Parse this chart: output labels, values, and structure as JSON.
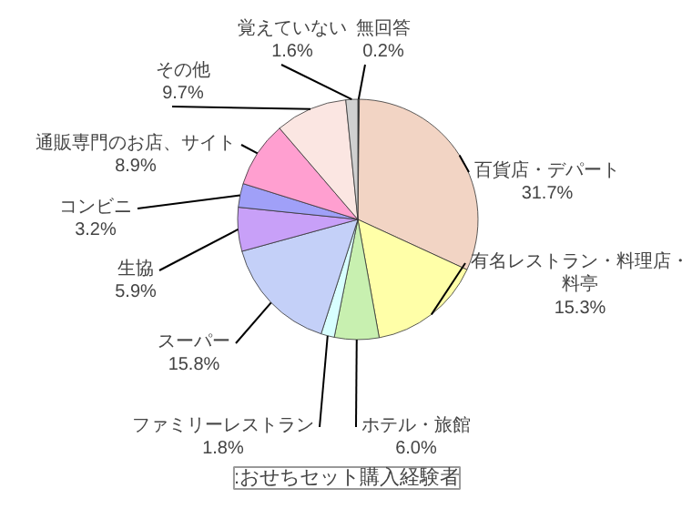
{
  "chart_data": {
    "type": "pie",
    "categories": [
      "無回答",
      "百貨店・デパート",
      "有名レストラン・料理店・料亭",
      "ホテル・旅館",
      "ファミリーレストラン",
      "スーパー",
      "生協",
      "コンビニ",
      "通販専門のお店、サイト",
      "その他",
      "覚えていない"
    ],
    "values": [
      0.2,
      31.7,
      15.3,
      6.0,
      1.8,
      15.8,
      5.9,
      3.2,
      8.9,
      9.7,
      1.6
    ],
    "value_labels": [
      "0.2%",
      "31.7%",
      "15.3%",
      "6.0%",
      "1.8%",
      "15.8%",
      "5.9%",
      "3.2%",
      "8.9%",
      "9.7%",
      "1.6%"
    ],
    "colors": [
      "#404040",
      "#f2d4c4",
      "#ffffa8",
      "#c8f0b0",
      "#d8ffff",
      "#c4d0f8",
      "#c8a0f8",
      "#a0a0f8",
      "#ff9fd0",
      "#fbe6e2",
      "#d0d0d0"
    ],
    "annotations": [
      ":おせちセット購入経験者"
    ]
  }
}
